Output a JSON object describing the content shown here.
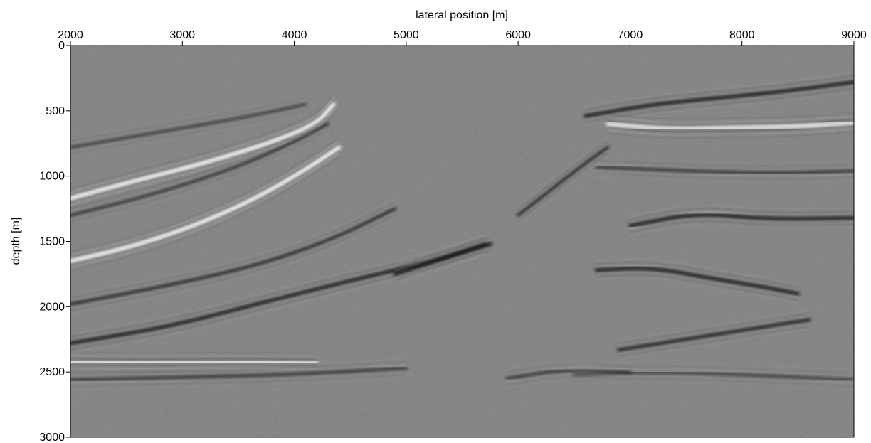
{
  "figure": {
    "xlabel": "lateral position [m]",
    "ylabel": "depth [m]",
    "x_axis": {
      "position": "top",
      "range": [
        2000,
        9000
      ],
      "ticks": [
        2000,
        3000,
        4000,
        5000,
        6000,
        7000,
        8000,
        9000
      ]
    },
    "y_axis": {
      "position": "left",
      "range": [
        0,
        3000
      ],
      "inverted": true,
      "ticks": [
        0,
        500,
        1000,
        1500,
        2000,
        2500,
        3000
      ]
    },
    "colormap": "grayscale",
    "background_color": "#7f7f7f",
    "reflectors": [
      {
        "points": [
          [
            2000,
            1170
          ],
          [
            2600,
            1030
          ],
          [
            3200,
            900
          ],
          [
            3800,
            740
          ],
          [
            4200,
            600
          ],
          [
            4350,
            450
          ]
        ],
        "polarity": "bright",
        "strength": 1.0
      },
      {
        "points": [
          [
            2000,
            1650
          ],
          [
            2600,
            1530
          ],
          [
            3200,
            1350
          ],
          [
            3700,
            1150
          ],
          [
            4100,
            950
          ],
          [
            4400,
            780
          ]
        ],
        "polarity": "bright",
        "strength": 1.0
      },
      {
        "points": [
          [
            2000,
            1300
          ],
          [
            2700,
            1150
          ],
          [
            3400,
            960
          ],
          [
            3900,
            780
          ],
          [
            4300,
            600
          ]
        ],
        "polarity": "dark",
        "strength": 0.5
      },
      {
        "points": [
          [
            2000,
            780
          ],
          [
            2800,
            660
          ],
          [
            3500,
            560
          ],
          [
            4100,
            450
          ]
        ],
        "polarity": "dark",
        "strength": 0.4
      },
      {
        "points": [
          [
            2000,
            1980
          ],
          [
            2800,
            1850
          ],
          [
            3600,
            1700
          ],
          [
            4300,
            1500
          ],
          [
            4900,
            1250
          ]
        ],
        "polarity": "dark",
        "strength": 0.6
      },
      {
        "points": [
          [
            2000,
            2280
          ],
          [
            2900,
            2150
          ],
          [
            3800,
            1950
          ],
          [
            4600,
            1780
          ],
          [
            5200,
            1660
          ],
          [
            5700,
            1520
          ]
        ],
        "polarity": "dark",
        "strength": 0.8
      },
      {
        "points": [
          [
            4900,
            1750
          ],
          [
            5300,
            1640
          ],
          [
            5600,
            1560
          ],
          [
            5750,
            1520
          ]
        ],
        "polarity": "dark",
        "strength": 0.9
      },
      {
        "points": [
          [
            2000,
            2420
          ],
          [
            2700,
            2430
          ],
          [
            3400,
            2420
          ],
          [
            4200,
            2430
          ]
        ],
        "polarity": "bright",
        "strength": 0.9
      },
      {
        "points": [
          [
            2000,
            2560
          ],
          [
            3000,
            2540
          ],
          [
            4000,
            2520
          ],
          [
            5000,
            2470
          ]
        ],
        "polarity": "dark",
        "strength": 0.5
      },
      {
        "points": [
          [
            6600,
            540
          ],
          [
            7200,
            450
          ],
          [
            7800,
            400
          ],
          [
            8400,
            350
          ],
          [
            9000,
            280
          ]
        ],
        "polarity": "dark",
        "strength": 0.8
      },
      {
        "points": [
          [
            6800,
            600
          ],
          [
            7300,
            640
          ],
          [
            7900,
            630
          ],
          [
            8500,
            620
          ],
          [
            9000,
            590
          ]
        ],
        "polarity": "bright",
        "strength": 0.9
      },
      {
        "points": [
          [
            6700,
            930
          ],
          [
            7500,
            960
          ],
          [
            8300,
            980
          ],
          [
            9000,
            960
          ]
        ],
        "polarity": "dark",
        "strength": 0.5
      },
      {
        "points": [
          [
            7000,
            1380
          ],
          [
            7600,
            1280
          ],
          [
            8200,
            1330
          ],
          [
            9000,
            1320
          ]
        ],
        "polarity": "dark",
        "strength": 0.8
      },
      {
        "points": [
          [
            6700,
            1720
          ],
          [
            7200,
            1700
          ],
          [
            7700,
            1780
          ],
          [
            8200,
            1850
          ],
          [
            8500,
            1900
          ]
        ],
        "polarity": "dark",
        "strength": 0.8
      },
      {
        "points": [
          [
            6900,
            2330
          ],
          [
            7500,
            2250
          ],
          [
            8000,
            2180
          ],
          [
            8600,
            2100
          ]
        ],
        "polarity": "dark",
        "strength": 0.7
      },
      {
        "points": [
          [
            6500,
            2520
          ],
          [
            7200,
            2500
          ],
          [
            8000,
            2520
          ],
          [
            9000,
            2560
          ]
        ],
        "polarity": "dark",
        "strength": 0.4
      },
      {
        "points": [
          [
            6000,
            1300
          ],
          [
            6300,
            1100
          ],
          [
            6600,
            900
          ],
          [
            6800,
            780
          ]
        ],
        "polarity": "dark",
        "strength": 0.6
      },
      {
        "points": [
          [
            5900,
            2550
          ],
          [
            6400,
            2480
          ],
          [
            7000,
            2500
          ]
        ],
        "polarity": "dark",
        "strength": 0.5
      }
    ]
  }
}
